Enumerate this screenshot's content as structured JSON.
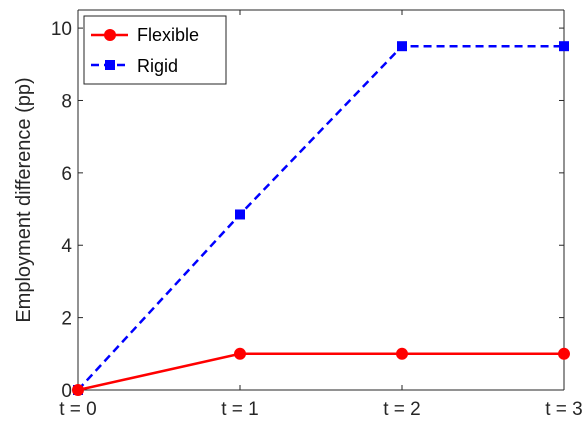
{
  "chart_data": {
    "type": "line",
    "categories": [
      "t = 0",
      "t = 1",
      "t = 2",
      "t = 3"
    ],
    "x": [
      0,
      1,
      2,
      3
    ],
    "title": "",
    "xlabel": "",
    "ylabel": "Employment difference (pp)",
    "ylim": [
      0,
      10.5
    ],
    "xlim": [
      0,
      3
    ],
    "yticks": [
      0,
      2,
      4,
      6,
      8,
      10
    ],
    "grid": false,
    "legend": "top-left",
    "series": [
      {
        "name": "Flexible",
        "values": [
          0,
          1,
          1,
          1
        ],
        "color": "#ff0000",
        "style": "solid",
        "marker": "circle"
      },
      {
        "name": "Rigid",
        "values": [
          0,
          4.85,
          9.5,
          9.5
        ],
        "color": "#0000ff",
        "style": "dashed",
        "marker": "square"
      }
    ]
  }
}
